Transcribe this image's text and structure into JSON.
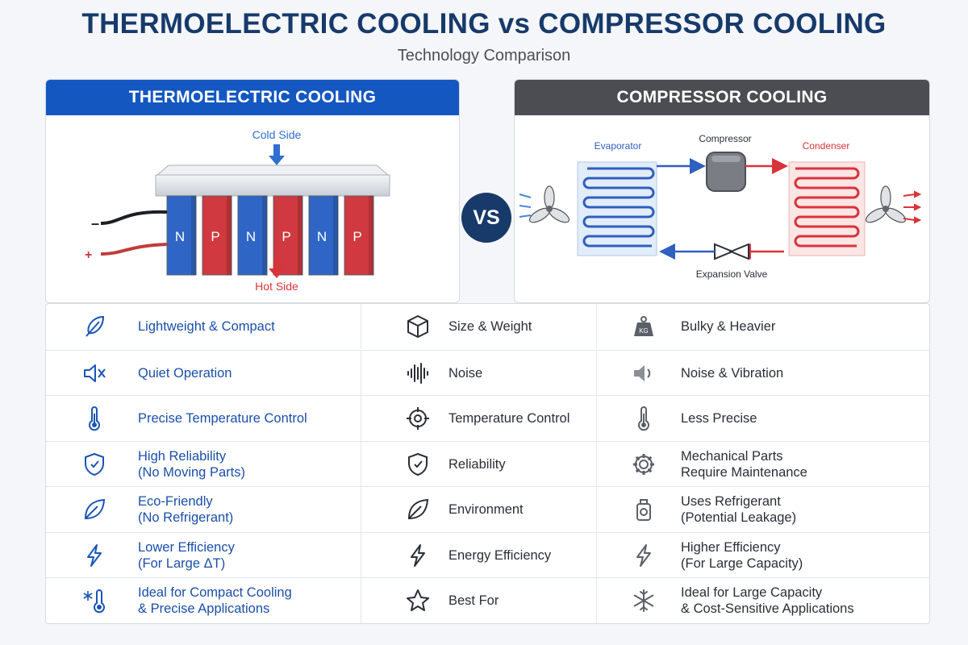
{
  "header": {
    "title": "THERMOELECTRIC COOLING vs COMPRESSOR COOLING",
    "subtitle": "Technology Comparison"
  },
  "vs_label": "VS",
  "thermoelectric": {
    "heading": "THERMOELECTRIC COOLING",
    "cold_side": "Cold Side",
    "hot_side": "Hot Side",
    "minus": "–",
    "plus": "+",
    "pellets": [
      "N",
      "P",
      "N",
      "P",
      "N",
      "P"
    ]
  },
  "compressor": {
    "heading": "COMPRESSOR COOLING",
    "evaporator": "Evaporator",
    "compressor": "Compressor",
    "condenser": "Condenser",
    "expansion_valve": "Expansion Valve"
  },
  "colors": {
    "te_header": "#1457c0",
    "comp_header": "#4b4d52",
    "title": "#173a6a",
    "cold": "#2f6fd0",
    "hot": "#d8343a",
    "n_type": "#2f66c6",
    "p_type": "#d0393f"
  },
  "comparison": [
    {
      "left_icon": "feather-icon",
      "left": [
        "Lightweight & Compact"
      ],
      "mid_icon": "cube-icon",
      "mid": "Size & Weight",
      "right_icon": "kg-weight-icon",
      "right": [
        "Bulky & Heavier"
      ]
    },
    {
      "left_icon": "speaker-mute-icon",
      "left": [
        "Quiet Operation"
      ],
      "mid_icon": "soundwave-icon",
      "mid": "Noise",
      "right_icon": "speaker-icon",
      "right": [
        "Noise & Vibration"
      ]
    },
    {
      "left_icon": "thermometer-icon",
      "left": [
        "Precise Temperature Control"
      ],
      "mid_icon": "target-icon",
      "mid": "Temperature Control",
      "right_icon": "thermometer-icon",
      "right": [
        "Less Precise"
      ]
    },
    {
      "left_icon": "shield-icon",
      "left": [
        "High Reliability",
        "(No Moving Parts)"
      ],
      "mid_icon": "shield-icon",
      "mid": "Reliability",
      "right_icon": "gear-icon",
      "right": [
        "Mechanical Parts",
        "Require Maintenance"
      ]
    },
    {
      "left_icon": "leaf-icon",
      "left": [
        "Eco-Friendly",
        "(No Refrigerant)"
      ],
      "mid_icon": "leaf-icon",
      "mid": "Environment",
      "right_icon": "refrigerant-tank-icon",
      "right": [
        "Uses Refrigerant",
        "(Potential Leakage)"
      ]
    },
    {
      "left_icon": "lightning-icon",
      "left": [
        "Lower Efficiency",
        "(For Large ΔT)"
      ],
      "mid_icon": "lightning-icon",
      "mid": "Energy Efficiency",
      "right_icon": "lightning-icon",
      "right": [
        "Higher Efficiency",
        "(For Large Capacity)"
      ]
    },
    {
      "left_icon": "snow-thermometer-icon",
      "left": [
        "Ideal for Compact Cooling",
        "& Precise Applications"
      ],
      "mid_icon": "star-icon",
      "mid": "Best For",
      "right_icon": "snowflake-icon",
      "right": [
        "Ideal for Large Capacity",
        "& Cost-Sensitive Applications"
      ]
    }
  ]
}
